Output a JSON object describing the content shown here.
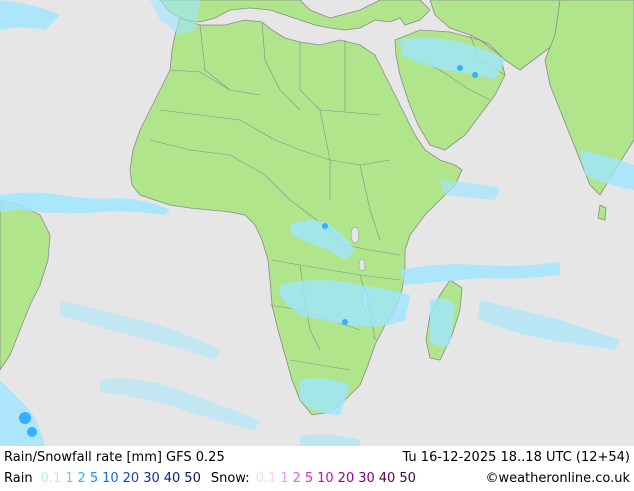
{
  "map": {
    "title": "Rain/Snowfall rate [mm] GFS 0.25",
    "valid_time": "Tu 16-12-2025 18..18 UTC (12+54)",
    "colors": {
      "ocean": "#e6e6e6",
      "land": "#b0e58c",
      "border": "#8a8a8a",
      "precip_light": "#9fe6ff",
      "precip_med": "#33b0ff"
    }
  },
  "legend": {
    "rain_label": "Rain",
    "rain_values": [
      {
        "v": "0.1",
        "color": "#b3ecff"
      },
      {
        "v": "1",
        "color": "#66ccff"
      },
      {
        "v": "2",
        "color": "#33b0ff"
      },
      {
        "v": "5",
        "color": "#1a8cff"
      },
      {
        "v": "10",
        "color": "#1a66ff"
      },
      {
        "v": "20",
        "color": "#1a44cc"
      },
      {
        "v": "30",
        "color": "#0f2ea8"
      },
      {
        "v": "40",
        "color": "#0a1f80"
      },
      {
        "v": "50",
        "color": "#0a1660"
      }
    ],
    "snow_label": "Snow:",
    "snow_values": [
      {
        "v": "0.1",
        "color": "#f7d6f7"
      },
      {
        "v": "1",
        "color": "#ee99ee"
      },
      {
        "v": "2",
        "color": "#dd66dd"
      },
      {
        "v": "5",
        "color": "#cc33cc"
      },
      {
        "v": "10",
        "color": "#bb11bb"
      },
      {
        "v": "20",
        "color": "#990099"
      },
      {
        "v": "30",
        "color": "#770077"
      },
      {
        "v": "40",
        "color": "#550055"
      },
      {
        "v": "50",
        "color": "#440044"
      }
    ],
    "copyright": "©weatheronline.co.uk"
  }
}
